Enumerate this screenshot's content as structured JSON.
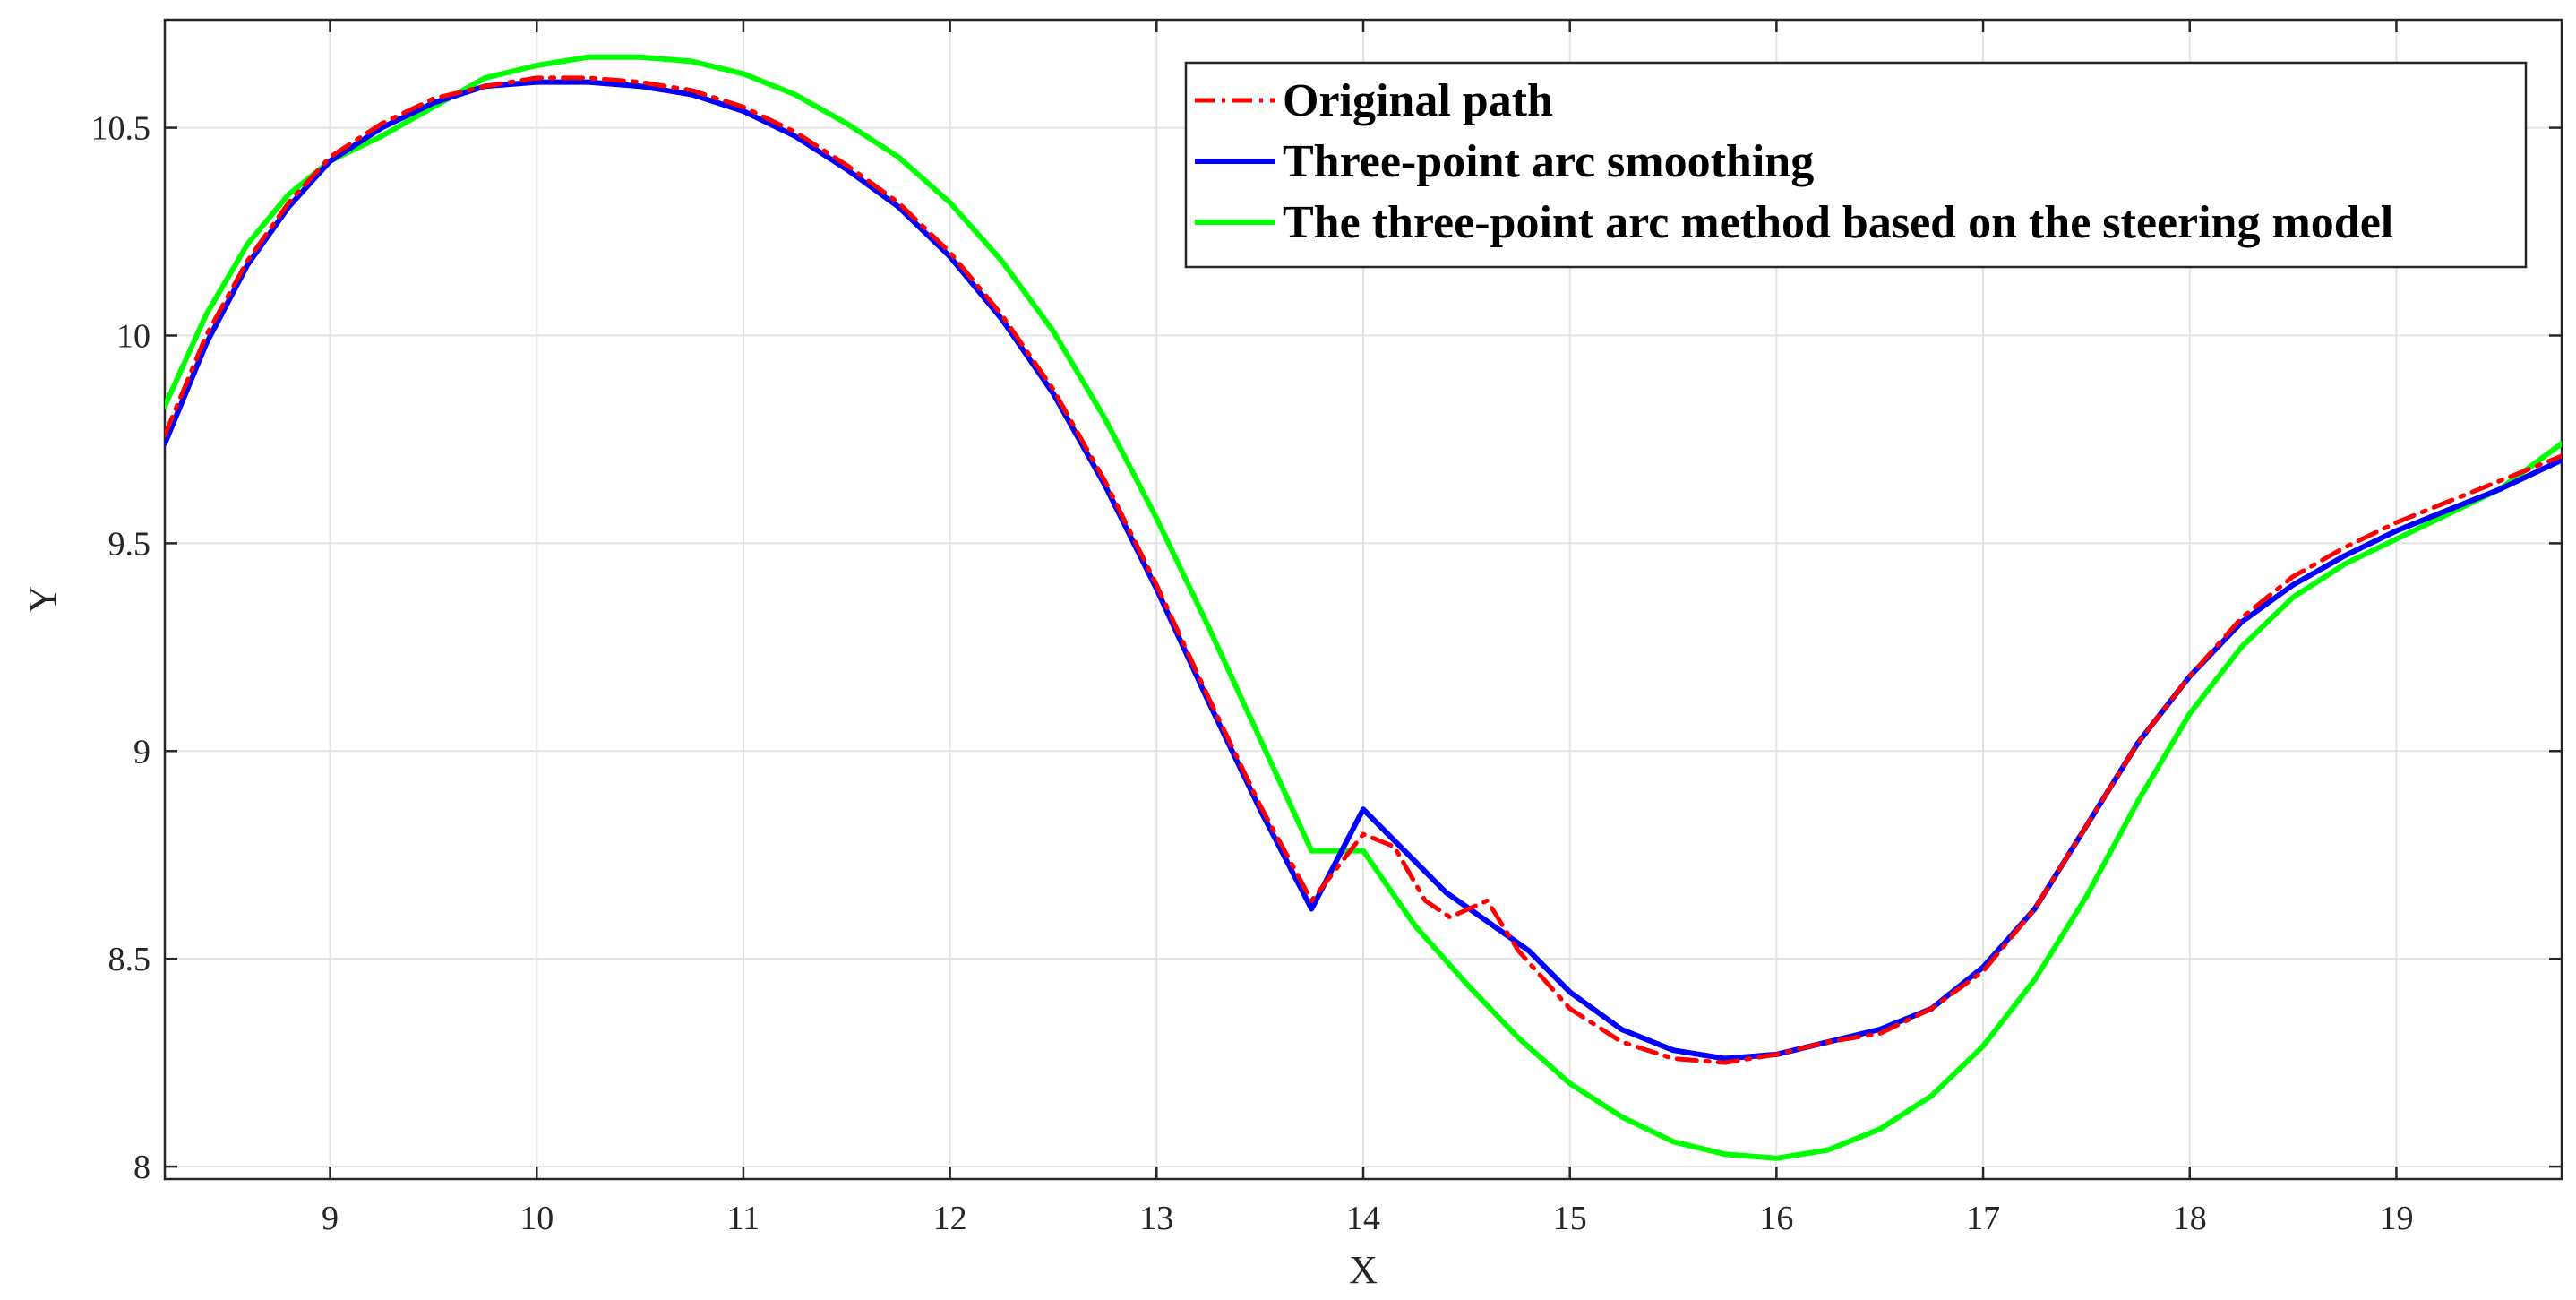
{
  "chart_data": {
    "type": "line",
    "xlabel": "X",
    "ylabel": "Y",
    "xlim": [
      8.2,
      19.8
    ],
    "ylim": [
      7.97,
      10.76
    ],
    "xticks": [
      9,
      10,
      11,
      12,
      13,
      14,
      15,
      16,
      17,
      18,
      19
    ],
    "yticks": [
      8,
      8.5,
      9,
      9.5,
      10,
      10.5
    ],
    "ytick_labels": [
      "8",
      "8.5",
      "9",
      "9.5",
      "10",
      "10.5"
    ],
    "grid": true,
    "legend_position": "top-right",
    "series": [
      {
        "name": "Original path",
        "color": "#ff0000",
        "style": "dash-dot",
        "x": [
          8.2,
          8.4,
          8.6,
          8.8,
          9.0,
          9.25,
          9.5,
          9.75,
          10.0,
          10.25,
          10.5,
          10.75,
          11.0,
          11.25,
          11.5,
          11.75,
          12.0,
          12.25,
          12.5,
          12.75,
          13.0,
          13.25,
          13.5,
          13.75,
          14.0,
          14.15,
          14.3,
          14.42,
          14.6,
          14.75,
          15.0,
          15.25,
          15.5,
          15.75,
          16.0,
          16.25,
          16.5,
          16.75,
          17.0,
          17.25,
          17.5,
          17.75,
          18.0,
          18.25,
          18.5,
          18.75,
          19.0,
          19.25,
          19.5,
          19.8
        ],
        "y": [
          9.76,
          10.0,
          10.18,
          10.32,
          10.43,
          10.51,
          10.57,
          10.6,
          10.62,
          10.62,
          10.61,
          10.59,
          10.55,
          10.49,
          10.41,
          10.32,
          10.2,
          10.05,
          9.87,
          9.65,
          9.4,
          9.13,
          8.87,
          8.64,
          8.8,
          8.77,
          8.64,
          8.6,
          8.64,
          8.52,
          8.38,
          8.3,
          8.26,
          8.25,
          8.27,
          8.3,
          8.32,
          8.38,
          8.47,
          8.62,
          8.82,
          9.02,
          9.18,
          9.32,
          9.42,
          9.49,
          9.55,
          9.6,
          9.65,
          9.71
        ]
      },
      {
        "name": "Three-point arc smoothing",
        "color": "#0000ff",
        "style": "solid",
        "x": [
          8.2,
          8.4,
          8.6,
          8.8,
          9.0,
          9.25,
          9.5,
          9.75,
          10.0,
          10.25,
          10.5,
          10.75,
          11.0,
          11.25,
          11.5,
          11.75,
          12.0,
          12.25,
          12.5,
          12.75,
          13.0,
          13.25,
          13.5,
          13.75,
          14.0,
          14.2,
          14.4,
          14.6,
          14.8,
          15.0,
          15.25,
          15.5,
          15.75,
          16.0,
          16.25,
          16.5,
          16.75,
          17.0,
          17.25,
          17.5,
          17.75,
          18.0,
          18.25,
          18.5,
          18.75,
          19.0,
          19.25,
          19.5,
          19.8
        ],
        "y": [
          9.74,
          9.98,
          10.17,
          10.31,
          10.42,
          10.5,
          10.56,
          10.6,
          10.61,
          10.61,
          10.6,
          10.58,
          10.54,
          10.48,
          10.4,
          10.31,
          10.19,
          10.04,
          9.86,
          9.64,
          9.39,
          9.12,
          8.86,
          8.62,
          8.86,
          8.76,
          8.66,
          8.59,
          8.52,
          8.42,
          8.33,
          8.28,
          8.26,
          8.27,
          8.3,
          8.33,
          8.38,
          8.48,
          8.62,
          8.82,
          9.02,
          9.18,
          9.31,
          9.4,
          9.47,
          9.53,
          9.58,
          9.63,
          9.7
        ]
      },
      {
        "name": "The three-point arc method based on the steering model",
        "color": "#00ff00",
        "style": "solid",
        "x": [
          8.2,
          8.4,
          8.6,
          8.8,
          9.0,
          9.25,
          9.5,
          9.75,
          10.0,
          10.25,
          10.5,
          10.75,
          11.0,
          11.25,
          11.5,
          11.75,
          12.0,
          12.25,
          12.5,
          12.75,
          13.0,
          13.25,
          13.5,
          13.75,
          14.0,
          14.25,
          14.5,
          14.75,
          15.0,
          15.25,
          15.5,
          15.75,
          16.0,
          16.25,
          16.5,
          16.75,
          17.0,
          17.25,
          17.5,
          17.75,
          18.0,
          18.25,
          18.5,
          18.75,
          19.0,
          19.25,
          19.5,
          19.8
        ],
        "y": [
          9.83,
          10.05,
          10.22,
          10.34,
          10.42,
          10.48,
          10.55,
          10.62,
          10.65,
          10.67,
          10.67,
          10.66,
          10.63,
          10.58,
          10.51,
          10.43,
          10.32,
          10.18,
          10.01,
          9.8,
          9.56,
          9.3,
          9.03,
          8.76,
          8.76,
          8.58,
          8.44,
          8.31,
          8.2,
          8.12,
          8.06,
          8.03,
          8.02,
          8.04,
          8.09,
          8.17,
          8.29,
          8.45,
          8.65,
          8.88,
          9.09,
          9.25,
          9.37,
          9.45,
          9.51,
          9.57,
          9.63,
          9.74
        ]
      }
    ]
  }
}
